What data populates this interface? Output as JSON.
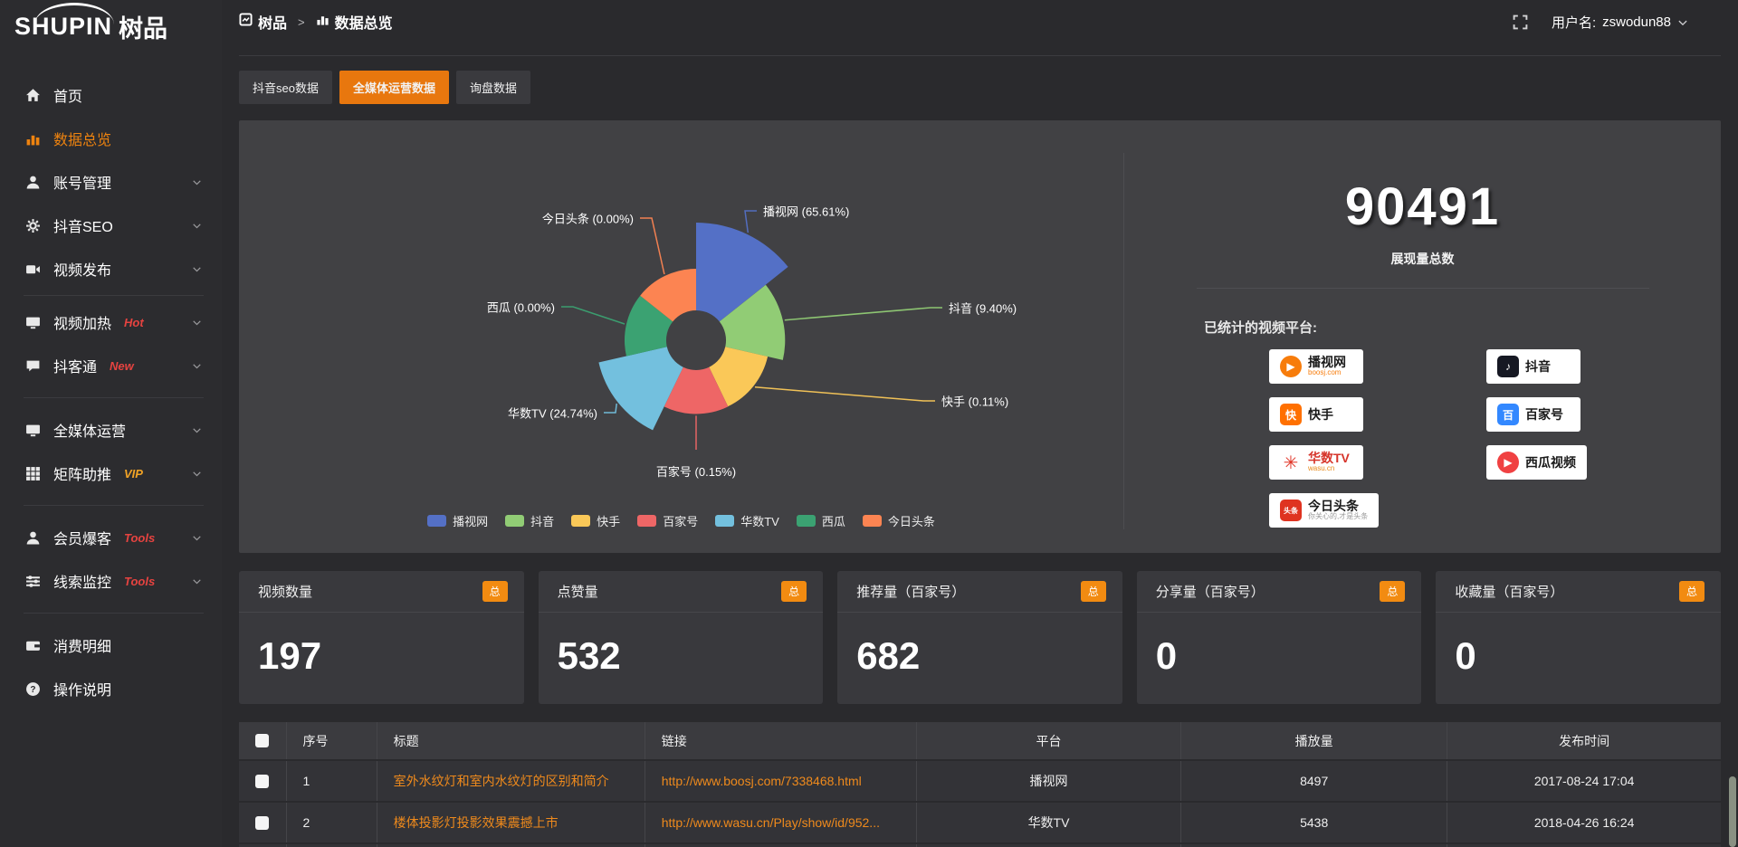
{
  "brand": {
    "logo_en": "SHUPIN",
    "logo_cn": "树品"
  },
  "topbar": {
    "breadcrumb": [
      {
        "label": "树品"
      },
      {
        "label": "数据总览"
      }
    ],
    "separator": ">",
    "username_label": "用户名:",
    "username": "zswodun88"
  },
  "sidebar": {
    "items": [
      {
        "label": "首页",
        "icon": "home-icon"
      },
      {
        "label": "数据总览",
        "icon": "bar-chart-icon",
        "active": true
      },
      {
        "label": "账号管理",
        "icon": "user-icon",
        "chevron": true
      },
      {
        "label": "抖音SEO",
        "icon": "gear-icon",
        "chevron": true
      },
      {
        "label": "视频发布",
        "icon": "video-camera-icon",
        "chevron": true
      },
      {
        "divider": true
      },
      {
        "label": "视频加热",
        "icon": "monitor-icon",
        "badge": "Hot",
        "badge_color": "#e64340",
        "chevron": true
      },
      {
        "label": "抖客通",
        "icon": "chat-icon",
        "badge": "New",
        "badge_color": "#e64340",
        "chevron": true
      },
      {
        "divider": true
      },
      {
        "label": "全媒体运营",
        "icon": "monitor-icon",
        "chevron": true
      },
      {
        "label": "矩阵助推",
        "icon": "grid-icon",
        "badge": "VIP",
        "badge_color": "#f1a325",
        "chevron": true
      },
      {
        "divider": true
      },
      {
        "label": "会员爆客",
        "icon": "user-icon",
        "badge": "Tools",
        "badge_color": "#e64340",
        "chevron": true
      },
      {
        "label": "线索监控",
        "icon": "sliders-icon",
        "badge": "Tools",
        "badge_color": "#e64340",
        "chevron": true
      },
      {
        "divider": true
      },
      {
        "label": "消费明细",
        "icon": "wallet-icon"
      },
      {
        "label": "操作说明",
        "icon": "question-icon"
      }
    ]
  },
  "tabs": [
    {
      "label": "抖音seo数据",
      "active": false
    },
    {
      "label": "全媒体运营数据",
      "active": true
    },
    {
      "label": "询盘数据",
      "active": false
    }
  ],
  "chart_data": {
    "type": "pie",
    "subtype": "nightingale-rose",
    "legend_position": "bottom",
    "label_format": "{name} ({pct}%)",
    "items": [
      {
        "name": "播视网",
        "pct": "65.61",
        "value": 65.61,
        "color": "#5470c6"
      },
      {
        "name": "抖音",
        "pct": "9.40",
        "value": 9.4,
        "color": "#91cc75"
      },
      {
        "name": "快手",
        "pct": "0.11",
        "value": 0.11,
        "color": "#fac858"
      },
      {
        "name": "百家号",
        "pct": "0.15",
        "value": 0.15,
        "color": "#ee6666"
      },
      {
        "name": "华数TV",
        "pct": "24.74",
        "value": 24.74,
        "color": "#73c0de"
      },
      {
        "name": "西瓜",
        "pct": "0.00",
        "value": 0.0,
        "color": "#3ba272"
      },
      {
        "name": "今日头条",
        "pct": "0.00",
        "value": 0.0,
        "color": "#fc8452"
      }
    ]
  },
  "summary": {
    "total_value": "90491",
    "total_label": "展现量总数",
    "platforms_label": "已统计的视频平台:",
    "platforms": [
      {
        "name": "播视网",
        "sub": "boosj.com",
        "icon": "boosj-icon",
        "icon_color": "#f77c0b",
        "icon_glyph": "▶",
        "icon_round": true,
        "sub_color": "#f77c0b"
      },
      {
        "name": "快手",
        "icon": "kuaishou-icon",
        "icon_color": "#ff7000",
        "icon_glyph": "快"
      },
      {
        "name": "华数TV",
        "sub": "wasu.cn",
        "icon": "wasu-icon",
        "icon_color": "#ffffff",
        "icon_glyph": "✳",
        "glyph_color": "#e03426",
        "name_color": "#d6342a",
        "sub_color": "#e88a1a"
      },
      {
        "name": "今日头条",
        "sub": "你关心的,才是头条",
        "icon": "toutiao-icon",
        "icon_color": "#df3320",
        "icon_glyph": "头条",
        "sub_color": "#9a9a9a"
      },
      {
        "name": "抖音",
        "icon": "douyin-icon",
        "icon_color": "#161823",
        "icon_glyph": "♪"
      },
      {
        "name": "百家号",
        "icon": "baijiahao-icon",
        "icon_color": "#3388ff",
        "icon_glyph": "百"
      },
      {
        "name": "西瓜视频",
        "icon": "xigua-icon",
        "icon_color": "#f04142",
        "icon_glyph": "▶",
        "icon_round": true
      }
    ]
  },
  "stat_cards": [
    {
      "label": "视频数量",
      "badge": "总",
      "value": "197"
    },
    {
      "label": "点赞量",
      "badge": "总",
      "value": "532"
    },
    {
      "label": "推荐量（百家号）",
      "badge": "总",
      "value": "682"
    },
    {
      "label": "分享量（百家号）",
      "badge": "总",
      "value": "0"
    },
    {
      "label": "收藏量（百家号）",
      "badge": "总",
      "value": "0"
    }
  ],
  "table": {
    "headers": [
      "序号",
      "标题",
      "链接",
      "平台",
      "播放量",
      "发布时间"
    ],
    "rows": [
      {
        "index": "1",
        "title": "室外水纹灯和室内水纹灯的区别和简介",
        "link": "http://www.boosj.com/7338468.html",
        "platform": "播视网",
        "views": "8497",
        "time": "2017-08-24 17:04"
      },
      {
        "index": "2",
        "title": "楼体投影灯投影效果震撼上市",
        "link": "http://www.wasu.cn/Play/show/id/952...",
        "platform": "华数TV",
        "views": "5438",
        "time": "2018-04-26 16:24"
      }
    ]
  },
  "colors": {
    "accent_orange": "#e8770e",
    "link_orange": "#ef8a1c",
    "badge_orange": "#f28b11",
    "panel_bg": "#414144",
    "page_bg": "#2a2a2d"
  }
}
